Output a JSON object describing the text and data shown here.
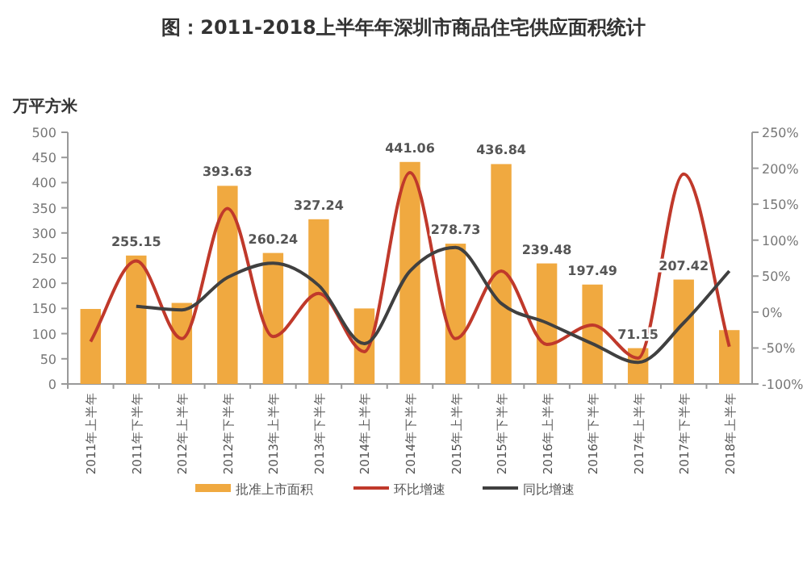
{
  "chart_data": {
    "type": "bar",
    "title": "图：2011-2018上半年年深圳市商品住宅供应面积统计",
    "ylabel": "万平方米",
    "categories": [
      "2011年上半年",
      "2011年下半年",
      "2012年上半年",
      "2012年下半年",
      "2013年上半年",
      "2013年下半年",
      "2014年上半年",
      "2014年下半年",
      "2015年上半年",
      "2015年下半年",
      "2016年上半年",
      "2016年下半年",
      "2017年上半年",
      "2017年下半年",
      "2018年上半年"
    ],
    "series": [
      {
        "name": "批准上市面积",
        "color": "#f0a940",
        "values": [
          149,
          255.15,
          161,
          393.63,
          260.24,
          327.24,
          150,
          441.06,
          278.73,
          436.84,
          239.48,
          197.49,
          71.15,
          207.42,
          107
        ],
        "value_labels": [
          null,
          "255.15",
          null,
          "393.63",
          "260.24",
          "327.24",
          null,
          "441.06",
          "278.73",
          "436.84",
          "239.48",
          "197.49",
          "71.15",
          "207.42",
          null
        ]
      },
      {
        "name": "环比增速",
        "type": "line",
        "axis": "y2",
        "color": "#c0392b",
        "values": [
          -41,
          71,
          -37,
          144,
          -34,
          26,
          -55,
          194,
          -37,
          57,
          -45,
          -18,
          -64,
          192,
          -48
        ]
      },
      {
        "name": "同比增速",
        "type": "line",
        "axis": "y2",
        "color": "#404040",
        "values": [
          null,
          8,
          3,
          48,
          68,
          37,
          -44,
          57,
          90,
          12,
          -15,
          -44,
          -70,
          -15,
          57
        ]
      }
    ],
    "ylim": [
      0,
      500
    ],
    "yticks": [
      0,
      50,
      100,
      150,
      200,
      250,
      300,
      350,
      400,
      450,
      500
    ],
    "y2lim": [
      -100,
      250
    ],
    "y2ticks": [
      {
        "value": -100,
        "label": "-100%"
      },
      {
        "value": -50,
        "label": "-50%"
      },
      {
        "value": 0,
        "label": "0%"
      },
      {
        "value": 50,
        "label": "50%"
      },
      {
        "value": 100,
        "label": "100%"
      },
      {
        "value": 150,
        "label": "150%"
      },
      {
        "value": 200,
        "label": "200%"
      },
      {
        "value": 250,
        "label": "250%"
      }
    ],
    "legend": "bottom",
    "line_style": "solid",
    "marker": "none"
  }
}
